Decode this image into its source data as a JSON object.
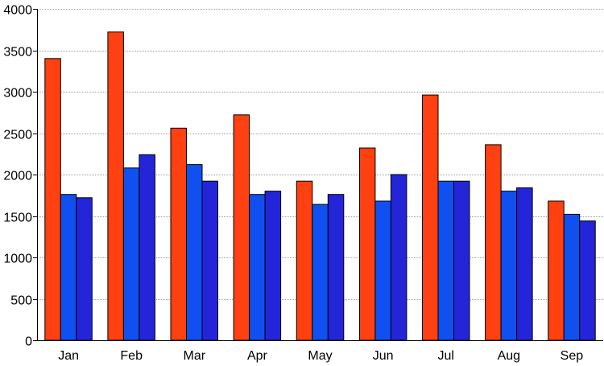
{
  "chart_data": {
    "type": "bar",
    "title": "",
    "xlabel": "",
    "ylabel": "",
    "categories": [
      "Jan",
      "Feb",
      "Mar",
      "Apr",
      "May",
      "Jun",
      "Jul",
      "Aug",
      "Sep"
    ],
    "series": [
      {
        "color": "#ff4010",
        "values": [
          3400,
          3720,
          2560,
          2720,
          1920,
          2320,
          2960,
          2360,
          1680
        ]
      },
      {
        "color": "#1050f0",
        "values": [
          1760,
          2080,
          2120,
          1760,
          1640,
          1680,
          1920,
          1800,
          1520
        ]
      },
      {
        "color": "#2424d8",
        "values": [
          1720,
          2240,
          1920,
          1800,
          1760,
          2000,
          1920,
          1840,
          1440
        ]
      }
    ],
    "ylim": [
      0,
      4000
    ],
    "yticks": [
      0,
      500,
      1000,
      1500,
      2000,
      2500,
      3000,
      3500,
      4000
    ],
    "grid": true,
    "legend": "none"
  }
}
